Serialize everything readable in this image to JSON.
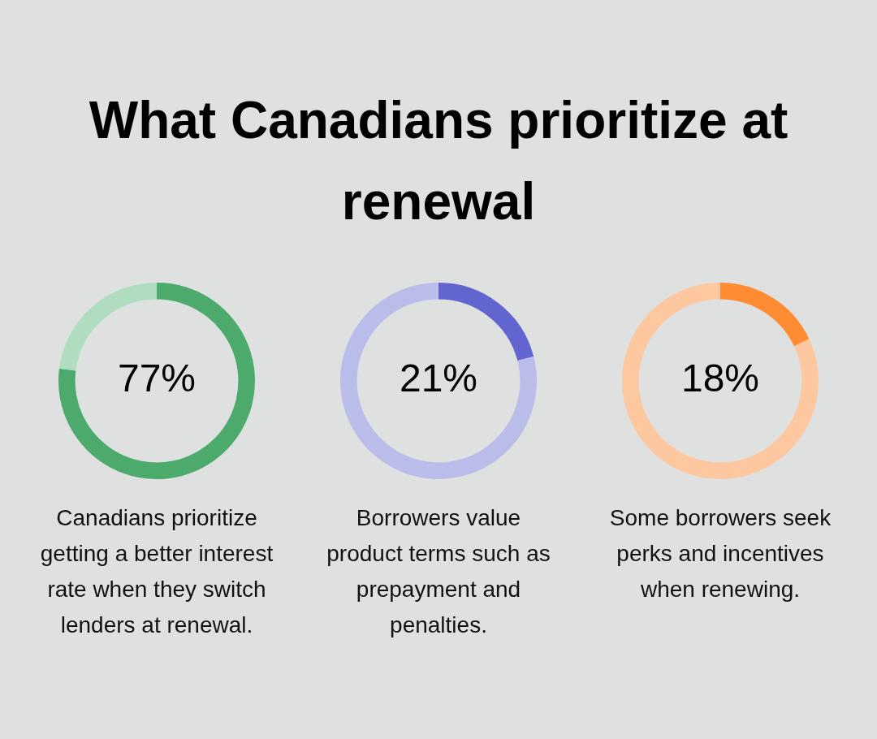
{
  "chart_data": [
    {
      "type": "donut",
      "title": "What Canadians prioritize at renewal",
      "categories": [
        null,
        null
      ],
      "values": [
        77,
        23
      ],
      "colors": [
        "#4caa6c",
        "#b0dcc0"
      ],
      "value_labels": [
        "77%",
        null
      ],
      "annotations": [
        "Canadians prioritize getting a better interest rate when they switch lenders at renewal."
      ]
    },
    {
      "type": "donut",
      "categories": [
        null,
        null
      ],
      "values": [
        21,
        79
      ],
      "colors": [
        "#6264d0",
        "#babdea"
      ],
      "value_labels": [
        "21%",
        null
      ],
      "annotations": [
        "Borrowers value product terms such as prepayment and penalties."
      ]
    },
    {
      "type": "donut",
      "categories": [
        null,
        null
      ],
      "values": [
        18,
        82
      ],
      "colors": [
        "#ff8c33",
        "#fdc8a0"
      ],
      "value_labels": [
        "18%",
        null
      ],
      "annotations": [
        "Some borrowers seek perks and incentives when renewing."
      ]
    }
  ]
}
